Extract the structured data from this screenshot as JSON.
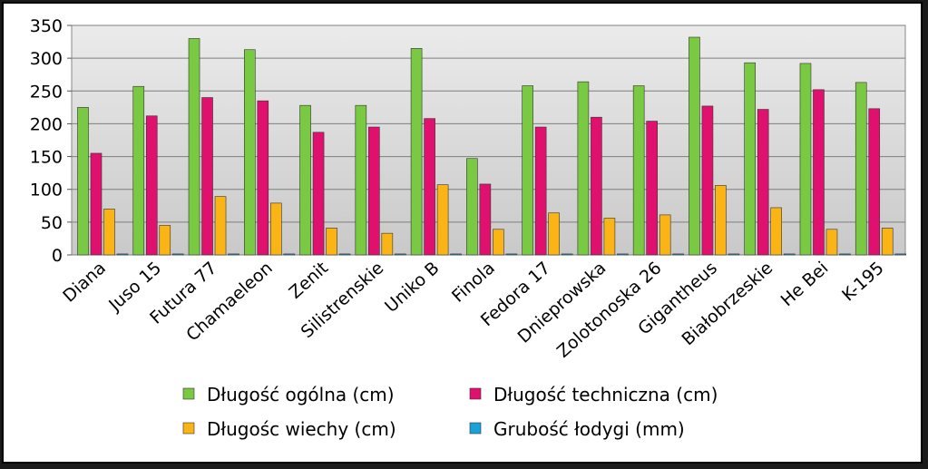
{
  "chart_data": {
    "type": "bar",
    "title": "",
    "xlabel": "",
    "ylabel": "",
    "ylim": [
      0,
      350
    ],
    "yticks": [
      0,
      50,
      100,
      150,
      200,
      250,
      300,
      350
    ],
    "grid": true,
    "legend_position": "bottom",
    "categories": [
      "Diana",
      "Juso 15",
      "Futura 77",
      "Chamaeleon",
      "Zenit",
      "Silistrenskie",
      "Uniko B",
      "Finola",
      "Fedora 17",
      "Dnieprowska",
      "Zolotonoska 26",
      "Gigantheus",
      "Białobrzeskie",
      "He Bei",
      "K-195"
    ],
    "series": [
      {
        "name": "Długość ogólna (cm)",
        "color": "#7ac943",
        "values": [
          225,
          257,
          330,
          313,
          228,
          228,
          315,
          147,
          258,
          264,
          258,
          332,
          293,
          292,
          263
        ]
      },
      {
        "name": "Długość techniczna (cm)",
        "color": "#e0106e",
        "values": [
          155,
          212,
          240,
          235,
          187,
          195,
          208,
          108,
          195,
          210,
          204,
          227,
          222,
          252,
          223
        ]
      },
      {
        "name": "Długośc wiechy (cm)",
        "color": "#fbb416",
        "values": [
          70,
          45,
          89,
          79,
          41,
          33,
          107,
          39,
          64,
          56,
          61,
          106,
          72,
          39,
          41
        ]
      },
      {
        "name": "Grubość łodygi (mm)",
        "color": "#1ba1d9",
        "values": [
          1.5,
          1.5,
          1.5,
          1.5,
          1.5,
          1.5,
          1.5,
          1.5,
          1.5,
          1.5,
          1.5,
          1.5,
          1.5,
          1.5,
          1.5
        ]
      }
    ]
  }
}
